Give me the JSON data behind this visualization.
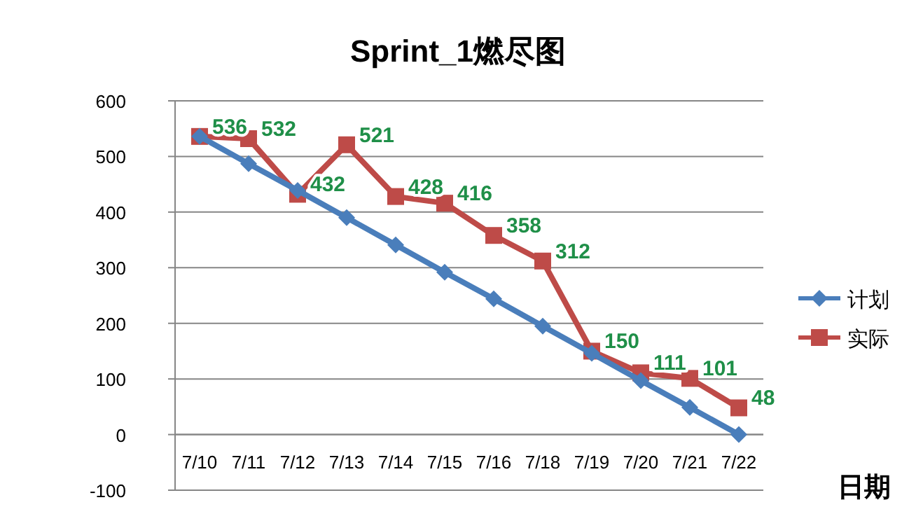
{
  "chart_data": {
    "type": "line",
    "title": "Sprint_1燃尽图",
    "xlabel": "日期",
    "categories": [
      "7/10",
      "7/11",
      "7/12",
      "7/13",
      "7/14",
      "7/15",
      "7/16",
      "7/18",
      "7/19",
      "7/20",
      "7/21",
      "7/22"
    ],
    "series": [
      {
        "name": "计划",
        "color": "#4a7ebb",
        "marker": "diamond",
        "values": [
          536,
          487,
          439,
          390,
          341,
          292,
          244,
          195,
          146,
          97,
          49,
          0
        ]
      },
      {
        "name": "实际",
        "color": "#be4b48",
        "marker": "square",
        "values": [
          536,
          532,
          432,
          521,
          428,
          416,
          358,
          312,
          150,
          111,
          101,
          48
        ],
        "value_labels": [
          "536",
          "532",
          "432",
          "521",
          "428",
          "416",
          "358",
          "312",
          "150",
          "111",
          "101",
          "48"
        ]
      }
    ],
    "ylim": [
      -100,
      600
    ],
    "yticks": [
      -100,
      0,
      100,
      200,
      300,
      400,
      500,
      600
    ],
    "grid": "y",
    "legend": "right"
  }
}
